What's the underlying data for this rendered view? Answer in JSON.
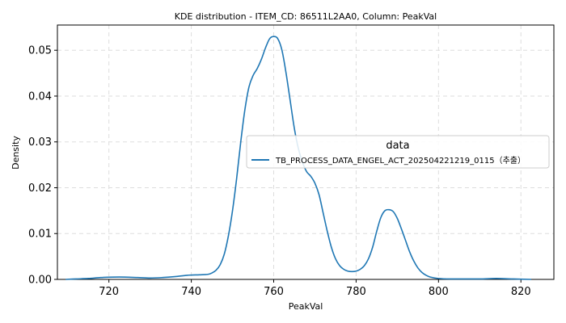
{
  "chart_data": {
    "type": "line",
    "title": "KDE distribution - ITEM_CD: 86511L2AA0, Column: PeakVal",
    "xlabel": "PeakVal",
    "ylabel": "Density",
    "xlim": [
      707.5,
      828
    ],
    "ylim": [
      0,
      0.0555
    ],
    "xticks": [
      720,
      740,
      760,
      780,
      800,
      820
    ],
    "xtick_labels": [
      "720",
      "740",
      "760",
      "780",
      "800",
      "820"
    ],
    "yticks": [
      0.0,
      0.01,
      0.02,
      0.03,
      0.04,
      0.05
    ],
    "ytick_labels": [
      "0.00",
      "0.01",
      "0.02",
      "0.03",
      "0.04",
      "0.05"
    ],
    "grid": true,
    "legend": {
      "title": "data",
      "placement": "center-right"
    },
    "series": [
      {
        "name": "TB_PROCESS_DATA_ENGEL_ACT_202504221219_0115（추출）",
        "color": "#1f77b4",
        "x": [
          709.5,
          712,
          715,
          718,
          721,
          724,
          727,
          730,
          733,
          736,
          739,
          742,
          744,
          745,
          746,
          747,
          748,
          749,
          750,
          751,
          752,
          753,
          754,
          755,
          756,
          757,
          758,
          759,
          760,
          761,
          762,
          763,
          764,
          765,
          766,
          767,
          768,
          769,
          770,
          771,
          772,
          773,
          774,
          775,
          776,
          777,
          778,
          779,
          780,
          781,
          782,
          783,
          784,
          785,
          786,
          787,
          788,
          789,
          790,
          791,
          792,
          793,
          794,
          795,
          796,
          797,
          798,
          800,
          803,
          806,
          810,
          814,
          818,
          822.5
        ],
        "y": [
          0.0,
          0.0001,
          0.0002,
          0.0004,
          0.0005,
          0.0005,
          0.0004,
          0.0003,
          0.0004,
          0.0006,
          0.0009,
          0.001,
          0.0011,
          0.0014,
          0.002,
          0.0032,
          0.0055,
          0.0095,
          0.015,
          0.022,
          0.03,
          0.037,
          0.042,
          0.0445,
          0.046,
          0.048,
          0.0505,
          0.0525,
          0.053,
          0.0525,
          0.05,
          0.045,
          0.039,
          0.033,
          0.0285,
          0.0255,
          0.0235,
          0.0225,
          0.021,
          0.0185,
          0.0145,
          0.0105,
          0.007,
          0.0045,
          0.003,
          0.0022,
          0.0018,
          0.0017,
          0.0018,
          0.0022,
          0.003,
          0.0045,
          0.007,
          0.0105,
          0.0135,
          0.015,
          0.0152,
          0.0148,
          0.0133,
          0.011,
          0.0085,
          0.006,
          0.004,
          0.0025,
          0.0015,
          0.0009,
          0.0005,
          0.0002,
          0.0001,
          0.0001,
          0.0001,
          0.0002,
          0.0001,
          0.0
        ]
      }
    ]
  }
}
